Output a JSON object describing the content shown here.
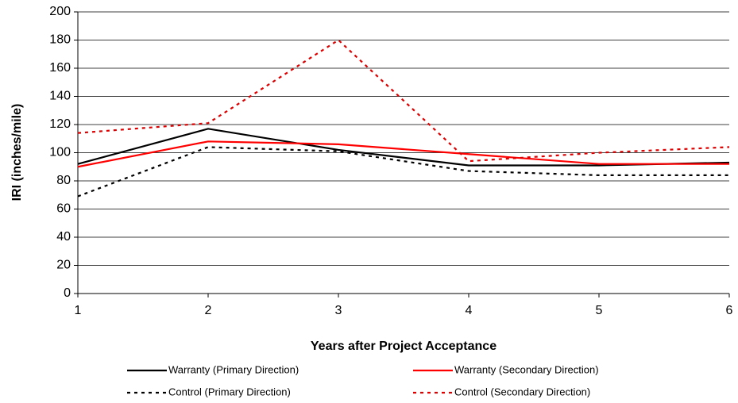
{
  "chart_data": {
    "type": "line",
    "x_label": "Years after Project Acceptance",
    "y_label": "IRI (inches/mile)",
    "x": [
      1,
      2,
      3,
      4,
      5,
      6
    ],
    "xlim": [
      1,
      6
    ],
    "xticks": [
      1,
      2,
      3,
      4,
      5,
      6
    ],
    "ylim": [
      0,
      200
    ],
    "yticks": [
      0,
      20,
      40,
      60,
      80,
      100,
      120,
      140,
      160,
      180,
      200
    ],
    "grid": true,
    "legend": "bottom",
    "series": [
      {
        "name": "Warranty (Primary Direction)",
        "color": "#000000",
        "line_style": "solid",
        "values": [
          92,
          117,
          102,
          91,
          91,
          93
        ]
      },
      {
        "name": "Warranty (Secondary Direction)",
        "color": "#ff0000",
        "line_style": "solid",
        "values": [
          90,
          108,
          106,
          99,
          92,
          92
        ]
      },
      {
        "name": "Control (Primary Direction)",
        "color": "#000000",
        "line_style": "dashed",
        "values": [
          69,
          104,
          101,
          87,
          84,
          84
        ]
      },
      {
        "name": "Control (Secondary Direction)",
        "color": "#dd0000",
        "line_style": "dashed",
        "values": [
          114,
          121,
          180,
          94,
          100,
          104
        ]
      }
    ]
  }
}
